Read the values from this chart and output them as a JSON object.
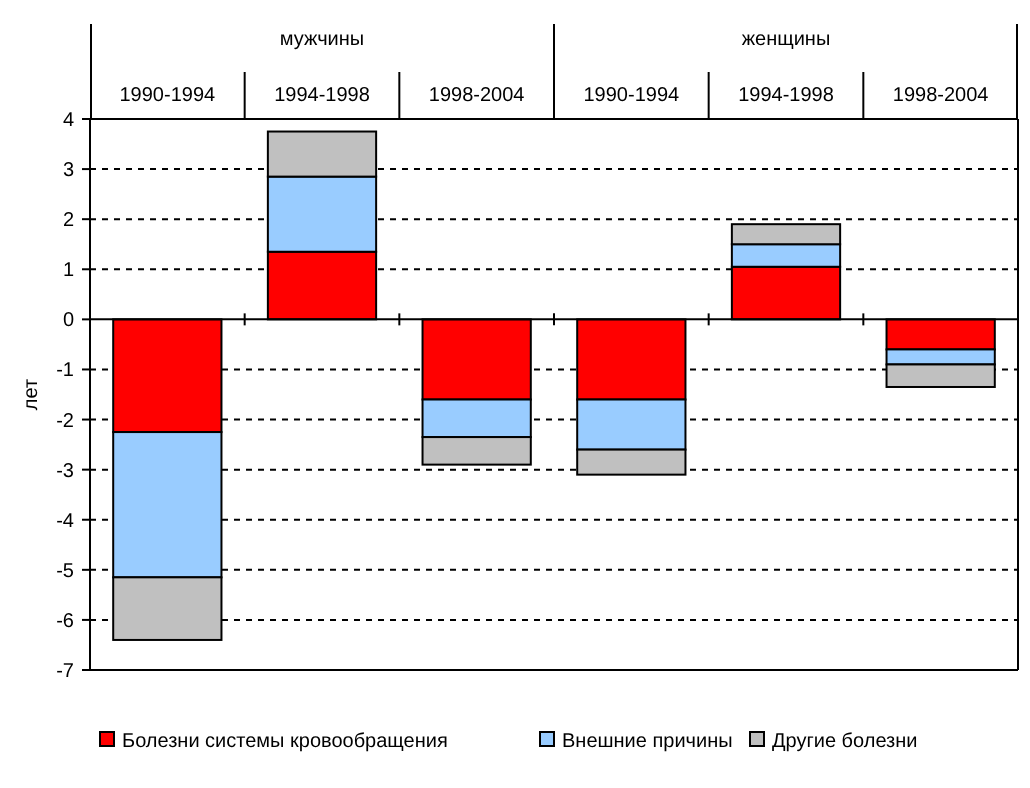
{
  "chart_data": {
    "type": "bar",
    "stacked": true,
    "ylabel": "лет",
    "categories": [
      "1990-1994",
      "1994-1998",
      "1998-2004",
      "1990-1994",
      "1994-1998",
      "1998-2004"
    ],
    "annotations": [
      "мужчины",
      "женщины"
    ],
    "series": [
      {
        "name": "Болезни системы кровообращения",
        "color": "#ff0000",
        "values": [
          -2.25,
          1.35,
          -1.6,
          -1.6,
          1.05,
          -0.6
        ]
      },
      {
        "name": "Внешние причины",
        "color": "#99ccff",
        "values": [
          -2.9,
          1.5,
          -0.75,
          -1.0,
          0.45,
          -0.3
        ]
      },
      {
        "name": "Другие болезни",
        "color": "#c0c0c0",
        "values": [
          -1.25,
          0.9,
          -0.55,
          -0.5,
          0.4,
          -0.45
        ]
      }
    ],
    "ylim": [
      -7,
      4
    ],
    "yticks": [
      -7,
      -6,
      -5,
      -4,
      -3,
      -2,
      -1,
      0,
      1,
      2,
      3,
      4
    ],
    "grid": "y",
    "legend": "bottom"
  }
}
